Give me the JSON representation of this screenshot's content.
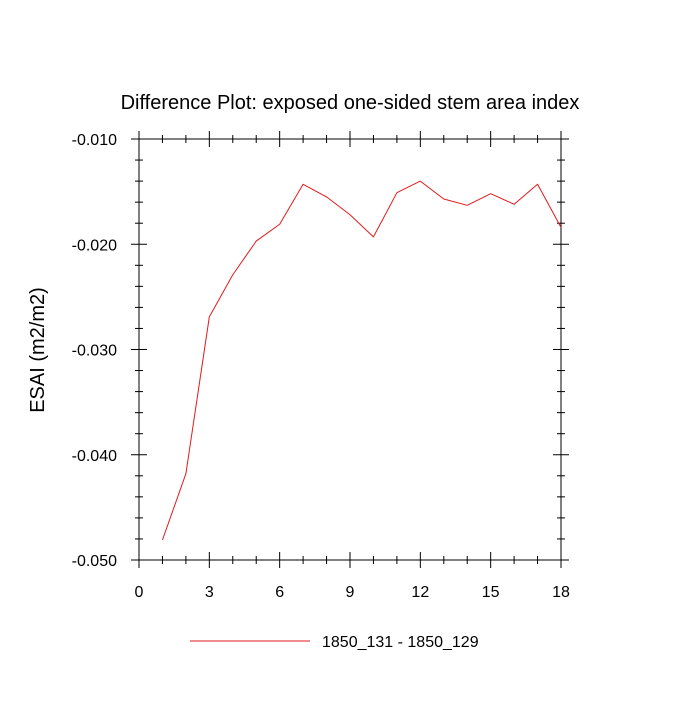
{
  "chart_data": {
    "type": "line",
    "title": "Difference Plot: exposed one-sided stem area index",
    "xlabel": "",
    "ylabel": "ESAI  (m2/m2)",
    "xlim": [
      0,
      18
    ],
    "ylim": [
      -0.05,
      -0.01
    ],
    "x_ticks": [
      0,
      3,
      6,
      9,
      12,
      15,
      18
    ],
    "x_tick_labels": [
      "0",
      "3",
      "6",
      "9",
      "12",
      "15",
      "18"
    ],
    "x_minor_step": 1,
    "y_ticks": [
      -0.05,
      -0.04,
      -0.03,
      -0.02,
      -0.01
    ],
    "y_tick_labels": [
      "-0.050",
      "-0.040",
      "-0.030",
      "-0.020",
      "-0.010"
    ],
    "y_minor_step": 0.002,
    "grid": false,
    "legend_position": "bottom",
    "series": [
      {
        "name": "1850_131 - 1850_129",
        "color": "#e31a1c",
        "x": [
          1,
          2,
          3,
          4,
          5,
          6,
          7,
          8,
          9,
          10,
          11,
          12,
          13,
          14,
          15,
          16,
          17,
          18
        ],
        "y": [
          -0.0481,
          -0.0418,
          -0.0269,
          -0.0229,
          -0.0197,
          -0.0181,
          -0.0143,
          -0.0155,
          -0.0172,
          -0.0193,
          -0.0151,
          -0.014,
          -0.0157,
          -0.0163,
          -0.0152,
          -0.0162,
          -0.0143,
          -0.0184
        ]
      }
    ]
  }
}
